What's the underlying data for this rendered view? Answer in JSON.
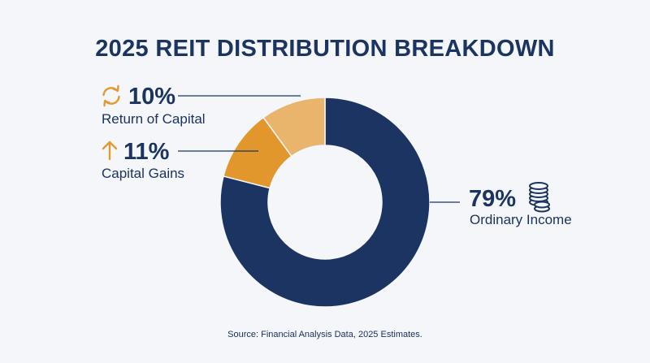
{
  "chart_data": {
    "type": "pie",
    "title": "2025 REIT DISTRIBUTION BREAKDOWN",
    "donut": true,
    "slices": [
      {
        "label": "Ordinary Income",
        "value": 79,
        "display": "79%",
        "color": "#1c3461",
        "icon": "coins-icon"
      },
      {
        "label": "Capital Gains",
        "value": 11,
        "display": "11%",
        "color": "#e2972d",
        "icon": "arrow-up-icon"
      },
      {
        "label": "Return of Capital",
        "value": 10,
        "display": "10%",
        "color": "#e9b46c",
        "icon": "refresh-icon"
      }
    ],
    "source": "Source: Financial Analysis Data, 2025 Estimates."
  }
}
